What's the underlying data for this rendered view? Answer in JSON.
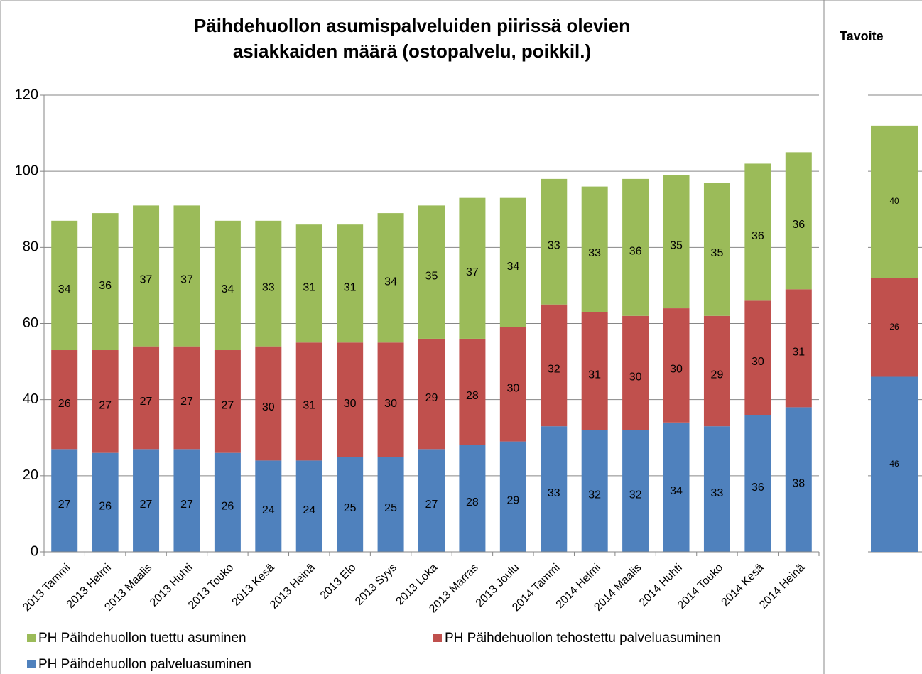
{
  "chart_data": [
    {
      "type": "bar",
      "stacked": true,
      "title": [
        "Päihdehuollon asumispalveluiden piirissä olevien",
        "asiakkaiden määrä (ostopalvelu, poikkil.)"
      ],
      "categories": [
        "2013 Tammi",
        "2013 Helmi",
        "2013 Maalis",
        "2013 Huhti",
        "2013 Touko",
        "2013 Kesä",
        "2013 Heinä",
        "2013 Elo",
        "2013 Syys",
        "2013 Loka",
        "2013 Marras",
        "2013 Joulu",
        "2014 Tammi",
        "2014 Helmi",
        "2014 Maalis",
        "2014 Huhti",
        "2014 Touko",
        "2014 Kesä",
        "2014 Heinä"
      ],
      "series": [
        {
          "name": "PH Päihdehuollon palveluasuminen",
          "color": "#4f81bd",
          "values": [
            27,
            26,
            27,
            27,
            26,
            24,
            24,
            25,
            25,
            27,
            28,
            29,
            33,
            32,
            32,
            34,
            33,
            36,
            38
          ]
        },
        {
          "name": "PH Päihdehuollon tehostettu palveluasuminen",
          "color": "#c0504d",
          "values": [
            26,
            27,
            27,
            27,
            27,
            30,
            31,
            30,
            30,
            29,
            28,
            30,
            32,
            31,
            30,
            30,
            29,
            30,
            31
          ]
        },
        {
          "name": "PH Päihdehuollon tuettu asuminen",
          "color": "#9bbb59",
          "values": [
            34,
            36,
            37,
            37,
            34,
            33,
            31,
            31,
            34,
            35,
            37,
            34,
            33,
            33,
            36,
            35,
            35,
            36,
            36
          ]
        }
      ],
      "ylim": [
        0,
        120
      ],
      "yticks": [
        0,
        20,
        40,
        60,
        80,
        100,
        120
      ],
      "grid": true,
      "legend": "bottom"
    },
    {
      "type": "bar",
      "stacked": true,
      "title": [
        "Tavoite"
      ],
      "categories": [
        null
      ],
      "series": [
        {
          "color": "#4f81bd",
          "values": [
            46
          ]
        },
        {
          "color": "#c0504d",
          "values": [
            26
          ]
        },
        {
          "color": "#9bbb59",
          "values": [
            40
          ]
        }
      ],
      "ylim": [
        0,
        120
      ],
      "yticks": [
        0,
        20,
        40,
        60,
        80,
        100,
        120
      ],
      "grid": true
    }
  ]
}
